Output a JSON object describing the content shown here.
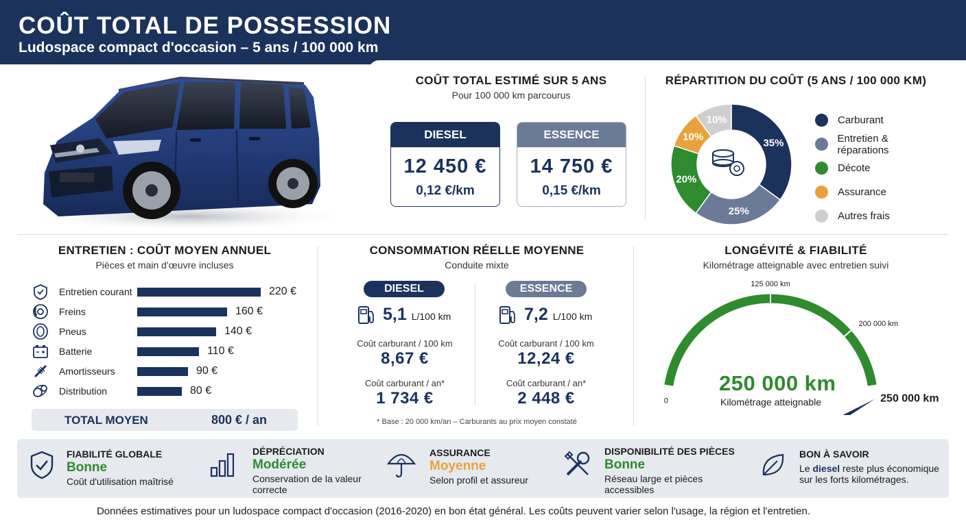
{
  "header": {
    "title": "COÛT TOTAL DE POSSESSION",
    "subtitle": "Ludospace compact d'occasion – 5 ans / 100 000 km"
  },
  "colors": {
    "navy": "#1b325c",
    "slate": "#6b7a96",
    "green": "#2e8b2e",
    "orange": "#e9a23b",
    "grey": "#cfcfcf"
  },
  "total_cost": {
    "title": "COÛT TOTAL ESTIMÉ SUR 5 ANS",
    "subtitle": "Pour 100 000 km parcourus",
    "diesel": {
      "label": "DIESEL",
      "amount": "12 450 €",
      "per_km": "0,12 €/km"
    },
    "essence": {
      "label": "ESSENCE",
      "amount": "14 750 €",
      "per_km": "0,15 €/km"
    }
  },
  "chart_data": [
    {
      "type": "pie",
      "title": "RÉPARTITION DU COÛT (5 ANS / 100 000 KM)",
      "categories": [
        "Carburant",
        "Entretien & réparations",
        "Décote",
        "Assurance",
        "Autres frais"
      ],
      "values": [
        35,
        25,
        20,
        10,
        10
      ],
      "labels": [
        "35%",
        "25%",
        "20%",
        "10%",
        "10%"
      ],
      "colors": [
        "#1b325c",
        "#6b7a96",
        "#2e8b2e",
        "#e9a23b",
        "#cfcfcf"
      ],
      "legend": "right",
      "donut": true
    },
    {
      "type": "bar",
      "orientation": "horizontal",
      "title": "ENTRETIEN : COÛT MOYEN ANNUEL",
      "subtitle": "Pièces et main d'œuvre incluses",
      "categories": [
        "Entretien courant",
        "Freins",
        "Pneus",
        "Batterie",
        "Amortisseurs",
        "Distribution"
      ],
      "values": [
        220,
        160,
        140,
        110,
        90,
        80
      ],
      "value_labels": [
        "220 €",
        "160 €",
        "140 €",
        "110 €",
        "90 €",
        "80 €"
      ],
      "icons": [
        "shield-check-icon",
        "brake-disc-icon",
        "tire-icon",
        "battery-icon",
        "shock-absorber-icon",
        "timing-belt-icon"
      ]
    }
  ],
  "maintenance": {
    "title": "ENTRETIEN : COÛT MOYEN ANNUEL",
    "subtitle": "Pièces et main d'œuvre incluses",
    "total_label": "TOTAL MOYEN",
    "total_value": "800 € / an"
  },
  "consumption": {
    "title": "CONSOMMATION RÉELLE MOYENNE",
    "subtitle": "Conduite mixte",
    "diesel": {
      "label": "DIESEL",
      "rate": "5,1",
      "unit": "L/100 km",
      "cost_100_label": "Coût carburant / 100 km",
      "cost_100": "8,67 €",
      "cost_year_label": "Coût carburant / an*",
      "cost_year": "1 734 €"
    },
    "essence": {
      "label": "ESSENCE",
      "rate": "7,2",
      "unit": "L/100 km",
      "cost_100_label": "Coût carburant / 100 km",
      "cost_100": "12,24 €",
      "cost_year_label": "Coût carburant / an*",
      "cost_year": "2 448 €"
    },
    "note": "* Base : 20 000 km/an – Carburants au prix moyen constaté"
  },
  "longevity": {
    "title": "LONGÉVITÉ & FIABILITÉ",
    "subtitle": "Kilométrage atteignable avec entretien suivi",
    "gauge_value": 250000,
    "gauge_max": 250000,
    "tick_0": "0",
    "tick_mid": "125 000 km",
    "tick_200": "200 000 km",
    "tick_end": "250 000 km",
    "big_value": "250 000 km",
    "big_label": "Kilométrage atteignable"
  },
  "band": {
    "reliability": {
      "title": "FIABILITÉ GLOBALE",
      "value": "Bonne",
      "desc": "Coût d'utilisation maîtrisé",
      "color": "#2e8b2e"
    },
    "depreciation": {
      "title": "DÉPRÉCIATION",
      "value": "Modérée",
      "desc": "Conservation de la valeur correcte",
      "color": "#2e8b2e"
    },
    "insurance": {
      "title": "ASSURANCE",
      "value": "Moyenne",
      "desc": "Selon profil et assureur",
      "color": "#e9a23b"
    },
    "parts": {
      "title": "DISPONIBILITÉ DES PIÈCES",
      "value": "Bonne",
      "desc": "Réseau large et pièces accessibles",
      "color": "#2e8b2e"
    },
    "tip": {
      "title": "BON À SAVOIR",
      "desc_pre": "Le ",
      "desc_bold": "diesel",
      "desc_post": " reste plus économique sur les forts kilométrages."
    }
  },
  "footer": "Données estimatives pour un ludospace compact d'occasion (2016-2020) en bon état général. Les coûts peuvent varier selon l'usage, la région et l'entretien."
}
